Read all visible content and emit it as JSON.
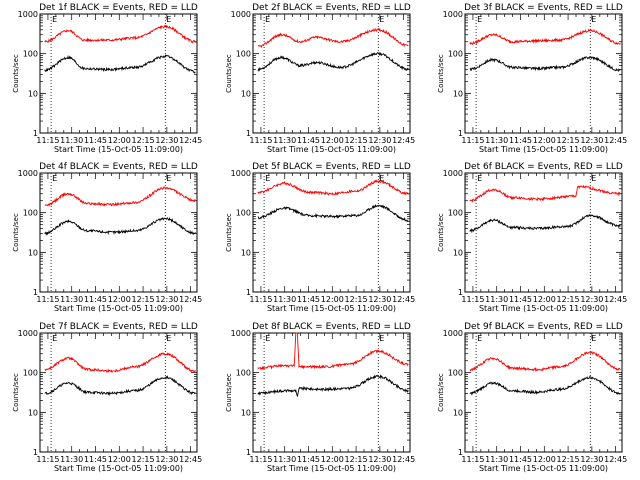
{
  "chart_data": [
    {
      "type": "line",
      "title": "Det 1f BLACK = Events, RED = LLD",
      "xlabel": "Start Time (15-Oct-05 11:09:00)",
      "ylabel": "Counts/sec",
      "x_ticks": [
        "11:15",
        "11:30",
        "11:45",
        "12:00",
        "12:15",
        "12:30",
        "12:45"
      ],
      "y_ticks": [
        "1",
        "10",
        "100",
        "1000"
      ],
      "y_scale": "log",
      "ylim": [
        1,
        1000
      ],
      "markers": [
        {
          "label": "E",
          "time": "11:17"
        },
        {
          "label": "E",
          "time": "12:29"
        }
      ],
      "series": [
        {
          "name": "LLD",
          "color": "#ff0000",
          "time": [
            "11:13",
            "11:28",
            "11:38",
            "11:54",
            "12:10",
            "12:29",
            "12:48"
          ],
          "values": [
            200,
            380,
            220,
            220,
            250,
            480,
            200
          ]
        },
        {
          "name": "Events",
          "color": "#000000",
          "time": [
            "11:13",
            "11:28",
            "11:38",
            "11:54",
            "12:10",
            "12:29",
            "12:48"
          ],
          "values": [
            38,
            80,
            42,
            40,
            45,
            85,
            35
          ]
        }
      ]
    },
    {
      "type": "line",
      "title": "Det 2f BLACK = Events, RED = LLD",
      "xlabel": "Start Time (15-Oct-05 11:09:00)",
      "ylabel": "Counts/sec",
      "x_ticks": [
        "11:15",
        "11:30",
        "11:45",
        "12:00",
        "12:15",
        "12:30",
        "12:45"
      ],
      "y_ticks": [
        "1",
        "10",
        "100",
        "1000"
      ],
      "y_scale": "log",
      "ylim": [
        1,
        1000
      ],
      "markers": [
        {
          "label": "E",
          "time": "11:17"
        },
        {
          "label": "E",
          "time": "12:29"
        }
      ],
      "series": [
        {
          "name": "LLD",
          "color": "#ff0000",
          "time": [
            "11:13",
            "11:28",
            "11:40",
            "11:50",
            "12:05",
            "12:29",
            "12:48"
          ],
          "values": [
            150,
            300,
            200,
            260,
            200,
            400,
            160
          ]
        },
        {
          "name": "Events",
          "color": "#000000",
          "time": [
            "11:13",
            "11:28",
            "11:40",
            "11:50",
            "12:05",
            "12:29",
            "12:48"
          ],
          "values": [
            40,
            80,
            50,
            60,
            45,
            100,
            40
          ]
        }
      ]
    },
    {
      "type": "line",
      "title": "Det 3f BLACK = Events, RED = LLD",
      "xlabel": "Start Time (15-Oct-05 11:09:00)",
      "ylabel": "Counts/sec",
      "x_ticks": [
        "11:15",
        "11:30",
        "11:45",
        "12:00",
        "12:15",
        "12:30",
        "12:45"
      ],
      "y_ticks": [
        "1",
        "10",
        "100",
        "1000"
      ],
      "y_scale": "log",
      "ylim": [
        1,
        1000
      ],
      "markers": [
        {
          "label": "E",
          "time": "11:17"
        },
        {
          "label": "E",
          "time": "12:29"
        }
      ],
      "series": [
        {
          "name": "LLD",
          "color": "#ff0000",
          "time": [
            "11:13",
            "11:28",
            "11:40",
            "11:55",
            "12:10",
            "12:29",
            "12:48"
          ],
          "values": [
            180,
            300,
            200,
            210,
            220,
            380,
            180
          ]
        },
        {
          "name": "Events",
          "color": "#000000",
          "time": [
            "11:13",
            "11:28",
            "11:40",
            "11:55",
            "12:10",
            "12:29",
            "12:48"
          ],
          "values": [
            40,
            70,
            45,
            42,
            45,
            80,
            38
          ]
        }
      ]
    },
    {
      "type": "line",
      "title": "Det 4f BLACK = Events, RED = LLD",
      "xlabel": "Start Time (15-Oct-05 11:09:00)",
      "ylabel": "Counts/sec",
      "x_ticks": [
        "11:15",
        "11:30",
        "11:45",
        "12:00",
        "12:15",
        "12:30",
        "12:45"
      ],
      "y_ticks": [
        "1",
        "10",
        "100",
        "1000"
      ],
      "y_scale": "log",
      "ylim": [
        1,
        1000
      ],
      "markers": [
        {
          "label": "E",
          "time": "11:17"
        },
        {
          "label": "E",
          "time": "12:29"
        }
      ],
      "series": [
        {
          "name": "LLD",
          "color": "#ff0000",
          "time": [
            "11:13",
            "11:28",
            "11:40",
            "11:55",
            "12:10",
            "12:29",
            "12:48"
          ],
          "values": [
            150,
            300,
            170,
            160,
            180,
            420,
            200
          ]
        },
        {
          "name": "Events",
          "color": "#000000",
          "time": [
            "11:13",
            "11:28",
            "11:40",
            "11:55",
            "12:10",
            "12:29",
            "12:48"
          ],
          "values": [
            30,
            60,
            35,
            32,
            35,
            70,
            30
          ]
        }
      ]
    },
    {
      "type": "line",
      "title": "Det 5f BLACK = Events, RED = LLD",
      "xlabel": "Start Time (15-Oct-05 11:09:00)",
      "ylabel": "Counts/sec",
      "x_ticks": [
        "11:15",
        "11:30",
        "11:45",
        "12:00",
        "12:15",
        "12:30",
        "12:45"
      ],
      "y_ticks": [
        "1",
        "10",
        "100",
        "1000"
      ],
      "y_scale": "log",
      "ylim": [
        1,
        1000
      ],
      "markers": [
        {
          "label": "E",
          "time": "11:17"
        },
        {
          "label": "E",
          "time": "12:29"
        }
      ],
      "series": [
        {
          "name": "LLD",
          "color": "#ff0000",
          "time": [
            "11:13",
            "11:30",
            "11:45",
            "12:00",
            "12:15",
            "12:29",
            "12:48"
          ],
          "values": [
            320,
            550,
            330,
            300,
            350,
            620,
            300
          ]
        },
        {
          "name": "Events",
          "color": "#000000",
          "time": [
            "11:13",
            "11:30",
            "11:45",
            "12:00",
            "12:15",
            "12:29",
            "12:48"
          ],
          "values": [
            75,
            130,
            85,
            80,
            85,
            150,
            65
          ]
        }
      ]
    },
    {
      "type": "line",
      "title": "Det 6f BLACK = Events, RED = LLD",
      "xlabel": "Start Time (15-Oct-05 11:09:00)",
      "ylabel": "Counts/sec",
      "x_ticks": [
        "11:15",
        "11:30",
        "11:45",
        "12:00",
        "12:15",
        "12:30",
        "12:45"
      ],
      "y_ticks": [
        "1",
        "10",
        "100",
        "1000"
      ],
      "y_scale": "log",
      "ylim": [
        1,
        1000
      ],
      "markers": [
        {
          "label": "E",
          "time": "11:17"
        },
        {
          "label": "E",
          "time": "12:29"
        }
      ],
      "series": [
        {
          "name": "LLD",
          "color": "#ff0000",
          "time": [
            "11:13",
            "11:28",
            "11:40",
            "11:55",
            "12:20",
            "12:21",
            "12:48"
          ],
          "values": [
            200,
            380,
            240,
            220,
            260,
            450,
            300
          ]
        },
        {
          "name": "Events",
          "color": "#000000",
          "time": [
            "11:13",
            "11:28",
            "11:40",
            "11:55",
            "12:15",
            "12:29",
            "12:48"
          ],
          "values": [
            35,
            65,
            42,
            40,
            45,
            85,
            45
          ]
        }
      ]
    },
    {
      "type": "line",
      "title": "Det 7f BLACK = Events, RED = LLD",
      "xlabel": "Start Time (15-Oct-05 11:09:00)",
      "ylabel": "Counts/sec",
      "x_ticks": [
        "11:15",
        "11:30",
        "11:45",
        "12:00",
        "12:15",
        "12:30",
        "12:45"
      ],
      "y_ticks": [
        "1",
        "10",
        "100",
        "1000"
      ],
      "y_scale": "log",
      "ylim": [
        1,
        1000
      ],
      "markers": [
        {
          "label": "E",
          "time": "11:17"
        },
        {
          "label": "E",
          "time": "12:29"
        }
      ],
      "series": [
        {
          "name": "LLD",
          "color": "#ff0000",
          "time": [
            "11:13",
            "11:28",
            "11:40",
            "11:55",
            "12:10",
            "12:29",
            "12:48"
          ],
          "values": [
            120,
            230,
            120,
            110,
            140,
            300,
            110
          ]
        },
        {
          "name": "Events",
          "color": "#000000",
          "time": [
            "11:13",
            "11:28",
            "11:40",
            "11:55",
            "12:10",
            "12:29",
            "12:48"
          ],
          "values": [
            30,
            55,
            32,
            30,
            35,
            75,
            30
          ]
        }
      ]
    },
    {
      "type": "line",
      "title": "Det 8f BLACK = Events, RED = LLD",
      "xlabel": "Start Time (15-Oct-05 11:09:00)",
      "ylabel": "Counts/sec",
      "x_ticks": [
        "11:15",
        "11:30",
        "11:45",
        "12:00",
        "12:15",
        "12:30",
        "12:45"
      ],
      "y_ticks": [
        "1",
        "10",
        "100",
        "1000"
      ],
      "y_scale": "log",
      "ylim": [
        1,
        1000
      ],
      "markers": [
        {
          "label": "E",
          "time": "11:17"
        },
        {
          "label": "E",
          "time": "12:29"
        }
      ],
      "series": [
        {
          "name": "LLD",
          "color": "#ff0000",
          "time": [
            "11:13",
            "11:30",
            "11:36",
            "11:37",
            "11:38",
            "11:39",
            "11:55",
            "12:10",
            "12:29",
            "12:48"
          ],
          "values": [
            130,
            150,
            150,
            1000,
            1000,
            140,
            140,
            160,
            350,
            160
          ]
        },
        {
          "name": "Events",
          "color": "#000000",
          "time": [
            "11:13",
            "11:30",
            "11:37",
            "11:38",
            "11:39",
            "11:55",
            "12:10",
            "12:29",
            "12:48"
          ],
          "values": [
            30,
            35,
            35,
            25,
            40,
            38,
            40,
            80,
            35
          ]
        }
      ]
    },
    {
      "type": "line",
      "title": "Det 9f BLACK = Events, RED = LLD",
      "xlabel": "Start Time (15-Oct-05 11:09:00)",
      "ylabel": "Counts/sec",
      "x_ticks": [
        "11:15",
        "11:30",
        "11:45",
        "12:00",
        "12:15",
        "12:30",
        "12:45"
      ],
      "y_ticks": [
        "1",
        "10",
        "100",
        "1000"
      ],
      "y_scale": "log",
      "ylim": [
        1,
        1000
      ],
      "markers": [
        {
          "label": "E",
          "time": "11:17"
        },
        {
          "label": "E",
          "time": "12:29"
        }
      ],
      "series": [
        {
          "name": "LLD",
          "color": "#ff0000",
          "time": [
            "11:13",
            "11:28",
            "11:40",
            "11:55",
            "12:10",
            "12:29",
            "12:48"
          ],
          "values": [
            120,
            230,
            130,
            120,
            140,
            320,
            120
          ]
        },
        {
          "name": "Events",
          "color": "#000000",
          "time": [
            "11:13",
            "11:28",
            "11:40",
            "11:55",
            "12:10",
            "12:29",
            "12:48"
          ],
          "values": [
            30,
            55,
            35,
            32,
            38,
            75,
            30
          ]
        }
      ]
    }
  ]
}
